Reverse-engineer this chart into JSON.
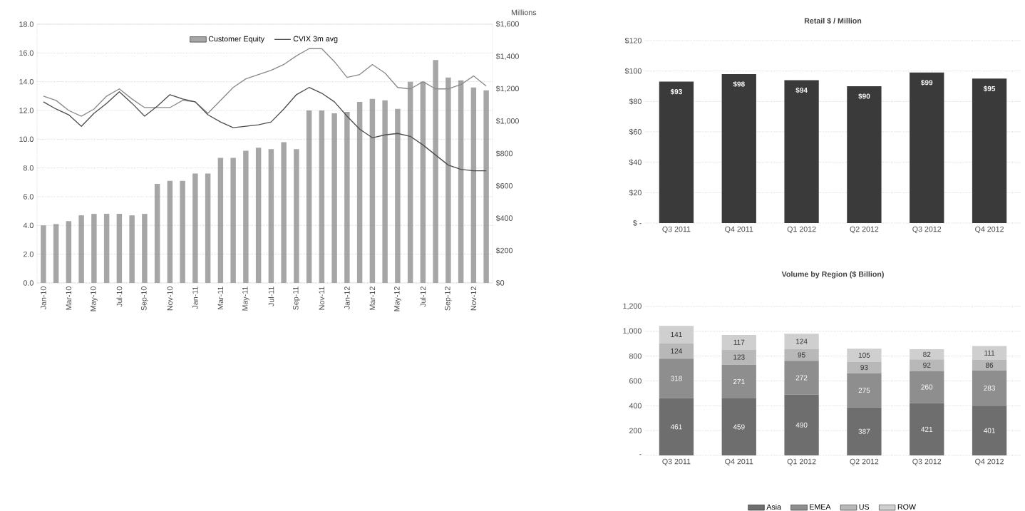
{
  "chart_data": [
    {
      "type": "bar",
      "categories": [
        "Jan-10",
        null,
        "Mar-10",
        null,
        "May-10",
        null,
        "Jul-10",
        null,
        "Sep-10",
        null,
        "Nov-10",
        null,
        "Jan-11",
        null,
        "Mar-11",
        null,
        "May-11",
        null,
        "Jul-11",
        null,
        "Sep-11",
        null,
        "Nov-11",
        null,
        "Jan-12",
        null,
        "Mar-12",
        null,
        "May-12",
        null,
        "Jul-12",
        null,
        "Sep-12",
        null,
        "Nov-12",
        null
      ],
      "series": [
        {
          "name": "Customer Equity",
          "type": "bar",
          "axis": "y2",
          "color": "#a6a6a6",
          "values": [
            356,
            364,
            382,
            418,
            427,
            427,
            427,
            418,
            427,
            613,
            631,
            631,
            676,
            676,
            773,
            773,
            818,
            836,
            827,
            871,
            827,
            1067,
            1067,
            1049,
            1058,
            1120,
            1138,
            1129,
            1076,
            1244,
            1244,
            1378,
            1271,
            1253,
            1209,
            1191
          ]
        },
        {
          "type": "line",
          "axis": "y",
          "color": "#8a8a8a",
          "values": [
            13.0,
            12.7,
            12.0,
            11.6,
            12.1,
            13.0,
            13.5,
            12.8,
            12.2,
            12.2,
            12.2,
            12.7,
            12.6,
            11.8,
            12.7,
            13.6,
            14.2,
            14.5,
            14.8,
            15.2,
            15.8,
            16.3,
            16.3,
            15.4,
            14.3,
            14.5,
            15.2,
            14.6,
            13.6,
            13.5,
            14.0,
            13.5,
            13.5,
            13.8,
            14.4,
            13.7
          ]
        },
        {
          "name": "CVIX 3m avg",
          "type": "line",
          "axis": "y",
          "color": "#4d4d4d",
          "values": [
            12.6,
            12.1,
            11.7,
            10.9,
            11.8,
            12.5,
            13.3,
            12.5,
            11.6,
            12.3,
            13.1,
            12.8,
            12.6,
            11.7,
            11.2,
            10.8,
            10.9,
            11.0,
            11.2,
            12.1,
            13.1,
            13.6,
            13.2,
            12.6,
            11.6,
            10.7,
            10.1,
            10.3,
            10.4,
            10.2,
            9.6,
            8.9,
            8.2,
            7.9,
            7.8,
            7.8
          ]
        }
      ],
      "ylim": [
        0,
        18
      ],
      "yticks": [
        {
          "value": 0,
          "label": "0.0"
        },
        {
          "value": 2,
          "label": "2.0"
        },
        {
          "value": 4,
          "label": "4.0"
        },
        {
          "value": 6,
          "label": "6.0"
        },
        {
          "value": 8,
          "label": "8.0"
        },
        {
          "value": 10,
          "label": "10.0"
        },
        {
          "value": 12,
          "label": "12.0"
        },
        {
          "value": 14,
          "label": "14.0"
        },
        {
          "value": 16,
          "label": "16.0"
        },
        {
          "value": 18,
          "label": "18.0"
        }
      ],
      "y2label": "Millions",
      "y2lim": [
        0,
        1600
      ],
      "y2ticks": [
        {
          "value": 0,
          "label": "$0"
        },
        {
          "value": 200,
          "label": "$200"
        },
        {
          "value": 400,
          "label": "$400"
        },
        {
          "value": 600,
          "label": "$600"
        },
        {
          "value": 800,
          "label": "$800"
        },
        {
          "value": 1000,
          "label": "$1,000"
        },
        {
          "value": 1200,
          "label": "$1,200"
        },
        {
          "value": 1400,
          "label": "$1,400"
        },
        {
          "value": 1600,
          "label": "$1,600"
        }
      ],
      "grid": "y",
      "legend": "top"
    },
    {
      "type": "bar",
      "title": "Retail $ / Million",
      "categories": [
        "Q3 2011",
        "Q4 2011",
        "Q1 2012",
        "Q2 2012",
        "Q3 2012",
        "Q4 2012"
      ],
      "values": [
        93,
        98,
        94,
        90,
        99,
        95
      ],
      "value_labels": [
        "$93",
        "$98",
        "$94",
        "$90",
        "$99",
        "$95"
      ],
      "color": "#3a3a3a",
      "ylim": [
        0,
        120
      ],
      "yticks": [
        {
          "value": 0,
          "label": "$ -"
        },
        {
          "value": 20,
          "label": "$20"
        },
        {
          "value": 40,
          "label": "$40"
        },
        {
          "value": 60,
          "label": "$60"
        },
        {
          "value": 80,
          "label": "$80"
        },
        {
          "value": 100,
          "label": "$100"
        },
        {
          "value": 120,
          "label": "$120"
        }
      ],
      "grid": "y"
    },
    {
      "type": "bar",
      "title": "Volume by Region ($ Billion)",
      "stacked": true,
      "categories": [
        "Q3 2011",
        "Q4 2011",
        "Q1 2012",
        "Q2 2012",
        "Q3 2012",
        "Q4 2012"
      ],
      "series": [
        {
          "name": "Asia",
          "color": "#6e6e6e",
          "values": [
            461,
            459,
            490,
            387,
            421,
            401
          ]
        },
        {
          "name": "EMEA",
          "color": "#8e8e8e",
          "values": [
            318,
            271,
            272,
            275,
            260,
            283
          ]
        },
        {
          "name": "US",
          "color": "#b8b8b8",
          "values": [
            124,
            123,
            95,
            93,
            92,
            86
          ]
        },
        {
          "name": "ROW",
          "color": "#cfcfcf",
          "values": [
            141,
            117,
            124,
            105,
            82,
            111
          ]
        }
      ],
      "data_labels": true,
      "ylim": [
        0,
        1200
      ],
      "yticks": [
        {
          "value": 0,
          "label": "-"
        },
        200,
        400,
        600,
        800,
        {
          "value": 1000,
          "label": "1,000"
        },
        {
          "value": 1200,
          "label": "1,200"
        }
      ],
      "grid": "y",
      "legend": "bottom"
    }
  ]
}
